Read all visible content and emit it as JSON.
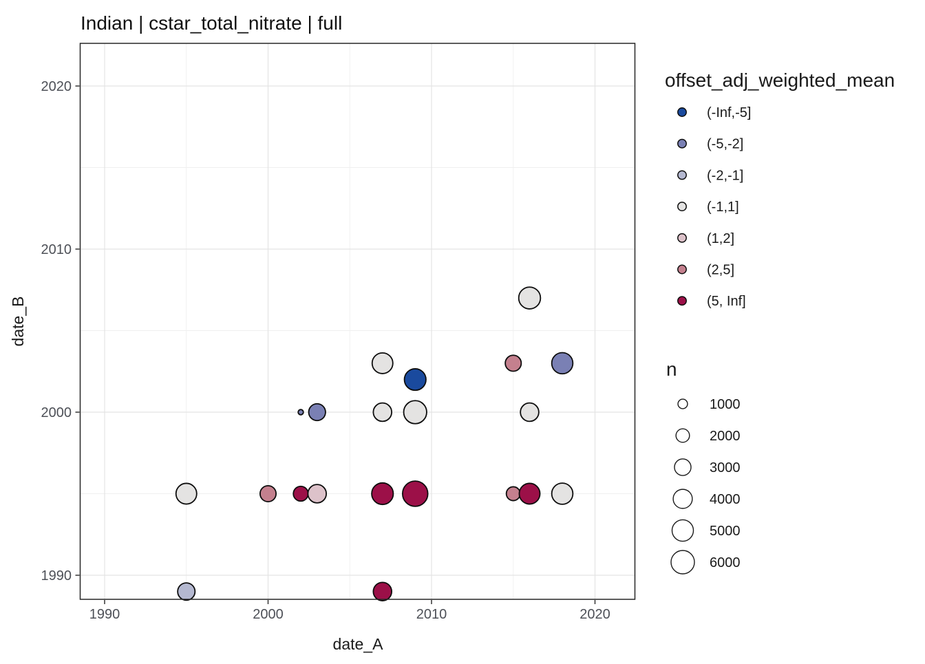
{
  "title": "Indian | cstar_total_nitrate | full",
  "chart_data": {
    "type": "scatter",
    "title": "Indian | cstar_total_nitrate | full",
    "xlabel": "date_A",
    "ylabel": "date_B",
    "x_ticks": [
      1990,
      2000,
      2010,
      2020
    ],
    "y_ticks": [
      1990,
      2000,
      2010,
      2020
    ],
    "x_minor": [
      1995,
      2005,
      2015
    ],
    "y_minor": [
      1995,
      2005,
      2015
    ],
    "x_range": [
      1988.5,
      2022.5
    ],
    "y_range": [
      1988.5,
      2022.6
    ],
    "grid": "major-and-minor",
    "legend_position": "right",
    "color_legend": {
      "title": "offset_adj_weighted_mean",
      "entries": [
        {
          "label": "(-Inf,-5]",
          "color": "#1a4a9e"
        },
        {
          "label": "(-5,-2]",
          "color": "#7a80b4"
        },
        {
          "label": "(-2,-1]",
          "color": "#b4b8d0"
        },
        {
          "label": "(-1,1]",
          "color": "#e4e3e2"
        },
        {
          "label": "(1,2]",
          "color": "#ddc2ca"
        },
        {
          "label": "(2,5]",
          "color": "#c4808e"
        },
        {
          "label": "(5, Inf]",
          "color": "#9c1048"
        }
      ]
    },
    "size_legend": {
      "title": "n",
      "entries": [
        1000,
        2000,
        3000,
        4000,
        5000,
        6000
      ]
    },
    "points": [
      {
        "x": 1995,
        "y": 1995,
        "bin": "(-1,1]",
        "n": 4700
      },
      {
        "x": 2000,
        "y": 1995,
        "bin": "(2,5]",
        "n": 2800
      },
      {
        "x": 2002,
        "y": 1995,
        "bin": "(5, Inf]",
        "n": 2400
      },
      {
        "x": 2003,
        "y": 1995,
        "bin": "(1,2]",
        "n": 3700
      },
      {
        "x": 1995,
        "y": 1989,
        "bin": "(-2,-1]",
        "n": 3300
      },
      {
        "x": 2002,
        "y": 2000,
        "bin": "(-5,-2]",
        "n": 300
      },
      {
        "x": 2003,
        "y": 2000,
        "bin": "(-5,-2]",
        "n": 3100
      },
      {
        "x": 2007,
        "y": 2003,
        "bin": "(-1,1]",
        "n": 4700
      },
      {
        "x": 2009,
        "y": 2002,
        "bin": "(-Inf,-5]",
        "n": 5100
      },
      {
        "x": 2007,
        "y": 2000,
        "bin": "(-1,1]",
        "n": 3700
      },
      {
        "x": 2009,
        "y": 2000,
        "bin": "(-1,1]",
        "n": 5800
      },
      {
        "x": 2007,
        "y": 1995,
        "bin": "(5, Inf]",
        "n": 5100
      },
      {
        "x": 2009,
        "y": 1995,
        "bin": "(5, Inf]",
        "n": 7000
      },
      {
        "x": 2007,
        "y": 1989,
        "bin": "(5, Inf]",
        "n": 3700
      },
      {
        "x": 2016,
        "y": 2007,
        "bin": "(-1,1]",
        "n": 5200
      },
      {
        "x": 2015,
        "y": 2003,
        "bin": "(2,5]",
        "n": 2800
      },
      {
        "x": 2018,
        "y": 2003,
        "bin": "(-5,-2]",
        "n": 4900
      },
      {
        "x": 2016,
        "y": 2000,
        "bin": "(-1,1]",
        "n": 3700
      },
      {
        "x": 2015,
        "y": 1995,
        "bin": "(2,5]",
        "n": 2100
      },
      {
        "x": 2016,
        "y": 1995,
        "bin": "(5, Inf]",
        "n": 4700
      },
      {
        "x": 2018,
        "y": 1995,
        "bin": "(-1,1]",
        "n": 4900
      }
    ]
  }
}
